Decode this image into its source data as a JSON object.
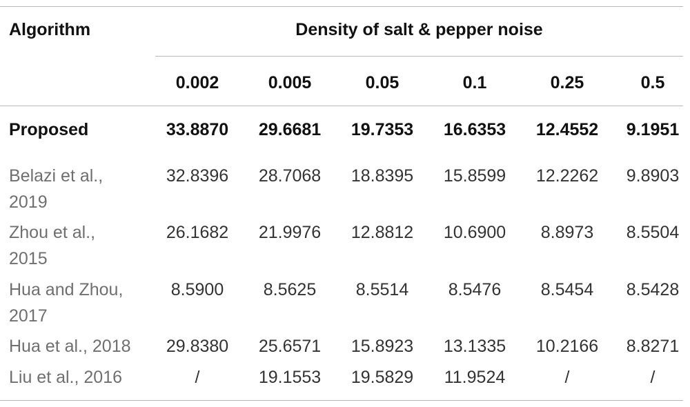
{
  "table": {
    "header": {
      "algorithm_label": "Algorithm",
      "group_label": "Density of salt & pepper noise",
      "densities": [
        "0.002",
        "0.005",
        "0.05",
        "0.1",
        "0.25",
        "0.5"
      ]
    },
    "rows": [
      {
        "name_lines": [
          "Proposed"
        ],
        "values": [
          "33.8870",
          "29.6681",
          "19.7353",
          "16.6353",
          "12.4552",
          "9.1951"
        ]
      },
      {
        "name_lines": [
          "Belazi et al.,",
          "2019"
        ],
        "values": [
          "32.8396",
          "28.7068",
          "18.8395",
          "15.8599",
          "12.2262",
          "9.8903"
        ]
      },
      {
        "name_lines": [
          "Zhou et al.,",
          "2015"
        ],
        "values": [
          "26.1682",
          "21.9976",
          "12.8812",
          "10.6900",
          "8.8973",
          "8.5504"
        ]
      },
      {
        "name_lines": [
          "Hua and Zhou,",
          "2017"
        ],
        "values": [
          "8.5900",
          "8.5625",
          "8.5514",
          "8.5476",
          "8.5454",
          "8.5428"
        ]
      },
      {
        "name_lines": [
          "Hua et al., 2018"
        ],
        "values": [
          "29.8380",
          "25.6571",
          "15.8923",
          "13.1335",
          "10.2166",
          "8.8271"
        ]
      },
      {
        "name_lines": [
          "Liu et al., 2016"
        ],
        "values": [
          "/",
          "19.1553",
          "19.5829",
          "11.9524",
          "/",
          "/"
        ]
      }
    ]
  }
}
